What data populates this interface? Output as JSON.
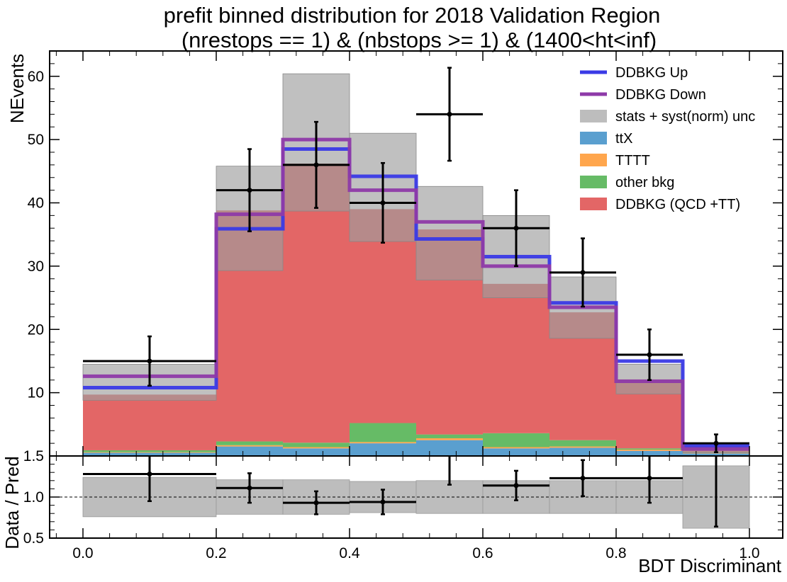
{
  "chart_data": [
    {
      "type": "bar",
      "title_lines": [
        "prefit binned distribution for 2018 Validation Region",
        "(nrestops == 1) & (nbstops >= 1) & (1400<ht<inf)"
      ],
      "ylabel": "NEvents",
      "xlabel": "",
      "bin_edges": [
        0.0,
        0.2,
        0.3,
        0.4,
        0.5,
        0.6,
        0.7,
        0.8,
        0.9,
        1.0
      ],
      "stack_order": [
        "ttX",
        "TTTT",
        "other bkg",
        "DDBKG (QCD +TT)"
      ],
      "series": [
        {
          "name": "ttX",
          "values": [
            0.5,
            1.5,
            1.2,
            2.0,
            2.5,
            1.2,
            1.3,
            0.8,
            0.4
          ],
          "color": "#5a9fcf"
        },
        {
          "name": "TTTT",
          "values": [
            0.1,
            0.2,
            0.2,
            0.2,
            0.3,
            0.2,
            0.2,
            0.2,
            0.1
          ],
          "color": "#ffa64d"
        },
        {
          "name": "other bkg",
          "values": [
            0.3,
            0.6,
            0.7,
            3.0,
            0.6,
            2.2,
            1.0,
            0.2,
            0.1
          ],
          "color": "#66bb66"
        },
        {
          "name": "DDBKG (QCD +TT)",
          "values": [
            8.8,
            36.5,
            44.1,
            33.8,
            32.4,
            23.6,
            20.2,
            10.9,
            0.9
          ],
          "color": "#e36666"
        }
      ],
      "uncertainty": {
        "name": "stats + syst(norm) unc",
        "lower": [
          8.8,
          29.3,
          38.7,
          33.9,
          27.8,
          25.0,
          18.6,
          9.8,
          0.5
        ],
        "upper": [
          14.5,
          45.8,
          60.4,
          51.0,
          42.6,
          38.0,
          28.3,
          14.5,
          1.6
        ],
        "color": "#bdbdbd"
      },
      "variations": [
        {
          "name": "DDBKG Up",
          "values": [
            10.8,
            35.9,
            48.5,
            44.2,
            34.3,
            31.5,
            24.2,
            15.0,
            1.6
          ],
          "color": "#3a3ae6"
        },
        {
          "name": "DDBKG Down",
          "values": [
            12.6,
            38.2,
            50.0,
            42.0,
            37.0,
            30.0,
            23.5,
            11.8,
            1.1
          ],
          "color": "#8e3aa8"
        }
      ],
      "data_points": {
        "x": [
          0.1,
          0.25,
          0.35,
          0.45,
          0.55,
          0.65,
          0.75,
          0.85,
          0.95
        ],
        "x_lo": [
          0.0,
          0.2,
          0.3,
          0.4,
          0.5,
          0.6,
          0.7,
          0.8,
          0.9
        ],
        "x_hi": [
          0.2,
          0.3,
          0.4,
          0.5,
          0.6,
          0.7,
          0.8,
          0.9,
          1.0
        ],
        "y": [
          15,
          42,
          46,
          40,
          54,
          36,
          29,
          16,
          2
        ],
        "err": [
          3.9,
          6.5,
          6.8,
          6.3,
          7.35,
          6.0,
          5.39,
          4.0,
          1.41
        ]
      },
      "ylim": [
        0,
        64
      ],
      "yticks": [
        10,
        20,
        30,
        40,
        50,
        60
      ],
      "legend_entries": [
        {
          "label": "DDBKG Up",
          "kind": "line",
          "color": "#3a3ae6"
        },
        {
          "label": "DDBKG Down",
          "kind": "line",
          "color": "#8e3aa8"
        },
        {
          "label": "stats + syst(norm) unc",
          "kind": "patch",
          "color": "#bdbdbd"
        },
        {
          "label": "ttX",
          "kind": "patch",
          "color": "#5a9fcf"
        },
        {
          "label": "TTTT",
          "kind": "patch",
          "color": "#ffa64d"
        },
        {
          "label": "other bkg",
          "kind": "patch",
          "color": "#66bb66"
        },
        {
          "label": "DDBKG (QCD +TT)",
          "kind": "patch",
          "color": "#e36666"
        }
      ],
      "legend_position": "top-right",
      "grid": false
    },
    {
      "type": "scatter",
      "ylabel": "Data / Pred",
      "xlabel": "BDT Discriminant",
      "xlim": [
        -0.05,
        1.05
      ],
      "ylim": [
        0.5,
        1.5
      ],
      "xticks": [
        "0.0",
        "0.2",
        "0.4",
        "0.6",
        "0.8",
        "1.0"
      ],
      "xtick_values": [
        0.0,
        0.2,
        0.4,
        0.6,
        0.8,
        1.0
      ],
      "yticks": [
        "0.5",
        "1.0",
        "1.5"
      ],
      "ytick_values": [
        0.5,
        1.0,
        1.5
      ],
      "reference_line": 1.0,
      "unc_band": {
        "lower": [
          0.76,
          0.79,
          0.79,
          0.81,
          0.8,
          0.8,
          0.8,
          0.8,
          0.62
        ],
        "upper": [
          1.24,
          1.21,
          1.21,
          1.19,
          1.2,
          1.2,
          1.2,
          1.2,
          1.38
        ]
      },
      "ratio": {
        "x": [
          0.1,
          0.25,
          0.35,
          0.45,
          0.55,
          0.65,
          0.75,
          0.85,
          0.95
        ],
        "y": [
          1.28,
          1.11,
          0.93,
          0.94,
          1.5,
          1.14,
          1.23,
          1.23,
          1.5
        ],
        "err": [
          0.33,
          0.18,
          0.14,
          0.15,
          0.35,
          0.18,
          0.22,
          0.3,
          0.86
        ]
      },
      "grid": false
    }
  ]
}
